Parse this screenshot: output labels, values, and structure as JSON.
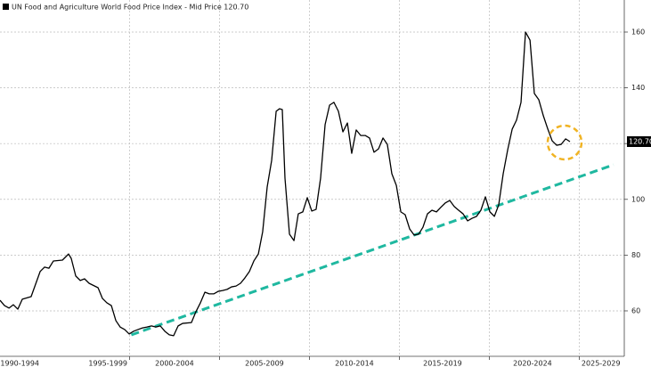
{
  "chart_data": {
    "type": "line",
    "title": "UN Food and Agriculture World Food Price Index - Mid Price 120.70",
    "xlim": [
      1992.8,
      2027.5
    ],
    "ylim": [
      43.7,
      171.5
    ],
    "yticks": [
      60,
      80,
      100,
      120,
      140,
      160
    ],
    "xticks": [
      {
        "value": 1993.9,
        "label": "1990-1994"
      },
      {
        "value": 1998.8,
        "label": "1995-1999"
      },
      {
        "value": 2002.5,
        "label": "2000-2004"
      },
      {
        "value": 2007.5,
        "label": "2005-2009"
      },
      {
        "value": 2012.5,
        "label": "2010-2014"
      },
      {
        "value": 2017.4,
        "label": "2015-2019"
      },
      {
        "value": 2022.4,
        "label": "2020-2024"
      },
      {
        "value": 2026.2,
        "label": "2025-2029"
      }
    ],
    "xgrid": [
      2000,
      2005,
      2010,
      2015,
      2020,
      2025
    ],
    "grid": true,
    "series": [
      {
        "name": "UN Food and Agriculture World Food Price Index",
        "color": "#000000",
        "x": [
          1992.8,
          1993.05,
          1993.3,
          1993.54,
          1993.79,
          1994.04,
          1994.53,
          1995.03,
          1995.28,
          1995.52,
          1995.77,
          1996.27,
          1996.61,
          1996.76,
          1997.01,
          1997.26,
          1997.5,
          1997.75,
          1998.25,
          1998.49,
          1998.74,
          1998.99,
          1999.24,
          1999.48,
          1999.73,
          1999.98,
          2000.23,
          2000.47,
          2000.72,
          2000.97,
          2001.22,
          2001.46,
          2001.71,
          2001.96,
          2002.21,
          2002.45,
          2002.7,
          2002.95,
          2003.44,
          2003.69,
          2003.94,
          2004.19,
          2004.43,
          2004.68,
          2004.93,
          2005.18,
          2005.42,
          2005.67,
          2005.92,
          2006.17,
          2006.41,
          2006.66,
          2006.91,
          2007.16,
          2007.4,
          2007.65,
          2007.9,
          2008.15,
          2008.34,
          2008.49,
          2008.64,
          2008.89,
          2009.14,
          2009.38,
          2009.63,
          2009.88,
          2010.13,
          2010.37,
          2010.62,
          2010.87,
          2011.12,
          2011.36,
          2011.61,
          2011.86,
          2012.11,
          2012.35,
          2012.6,
          2012.85,
          2013.1,
          2013.34,
          2013.59,
          2013.84,
          2014.09,
          2014.33,
          2014.58,
          2014.83,
          2015.08,
          2015.32,
          2015.57,
          2015.82,
          2016.07,
          2016.31,
          2016.56,
          2016.81,
          2017.06,
          2017.3,
          2017.55,
          2017.8,
          2018.05,
          2018.29,
          2018.54,
          2018.79,
          2019.04,
          2019.29,
          2019.53,
          2019.78,
          2020.03,
          2020.28,
          2020.52,
          2020.77,
          2021.02,
          2021.27,
          2021.51,
          2021.76,
          2022.01,
          2022.26,
          2022.5,
          2022.75,
          2023.0,
          2023.25,
          2023.49,
          2023.74,
          2023.99,
          2024.24,
          2024.48
        ],
        "values": [
          63.8,
          61.9,
          61.0,
          62.2,
          60.6,
          64.2,
          65.1,
          74.1,
          75.7,
          75.3,
          77.9,
          78.2,
          80.4,
          78.8,
          72.5,
          70.9,
          71.5,
          69.9,
          68.3,
          64.5,
          62.9,
          61.9,
          56.5,
          54.2,
          53.3,
          51.7,
          52.7,
          53.3,
          53.9,
          54.2,
          54.6,
          54.2,
          54.6,
          52.7,
          51.4,
          51.1,
          54.6,
          55.5,
          55.8,
          59.7,
          62.9,
          66.7,
          66.1,
          66.1,
          67.0,
          67.3,
          67.7,
          68.6,
          68.9,
          69.9,
          71.8,
          74.1,
          77.9,
          80.4,
          88.4,
          104.4,
          114.0,
          131.6,
          132.5,
          132.2,
          107.6,
          87.5,
          85.2,
          94.8,
          95.5,
          100.6,
          95.8,
          96.4,
          107.6,
          126.8,
          133.8,
          134.8,
          131.6,
          124.2,
          127.4,
          116.5,
          124.9,
          122.9,
          122.9,
          122.0,
          116.9,
          118.1,
          122.0,
          119.7,
          109.2,
          105.0,
          95.5,
          94.5,
          89.4,
          87.2,
          87.5,
          90.0,
          94.8,
          96.1,
          95.5,
          97.1,
          98.7,
          99.6,
          97.4,
          96.1,
          94.8,
          92.3,
          93.2,
          93.9,
          96.1,
          100.9,
          95.5,
          93.9,
          98.0,
          109.2,
          117.8,
          125.2,
          128.4,
          134.8,
          160.0,
          157.1,
          138.0,
          135.7,
          130.0,
          125.2,
          121.0,
          119.4,
          119.7,
          121.7,
          120.7
        ]
      }
    ],
    "last_price": {
      "value": 120.7,
      "label": "120.70"
    },
    "trendline": {
      "color": "#1fb8a0",
      "x": [
        2000.1,
        2026.9
      ],
      "values": [
        51.4,
        112.4
      ]
    }
  }
}
